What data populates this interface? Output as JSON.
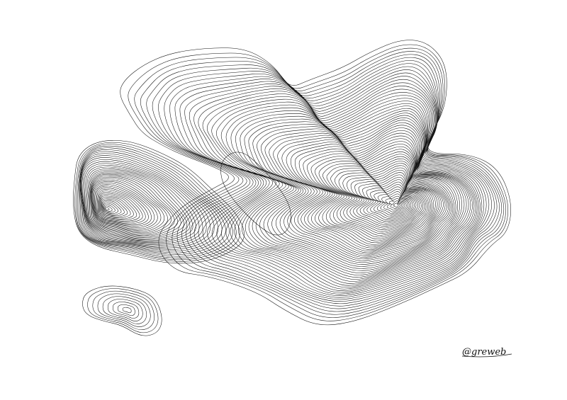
{
  "artwork": {
    "style": "plotter contour lines",
    "ink_color": "#111111",
    "paper_color": "#ffffff"
  },
  "signature": {
    "text": "@greweb"
  }
}
